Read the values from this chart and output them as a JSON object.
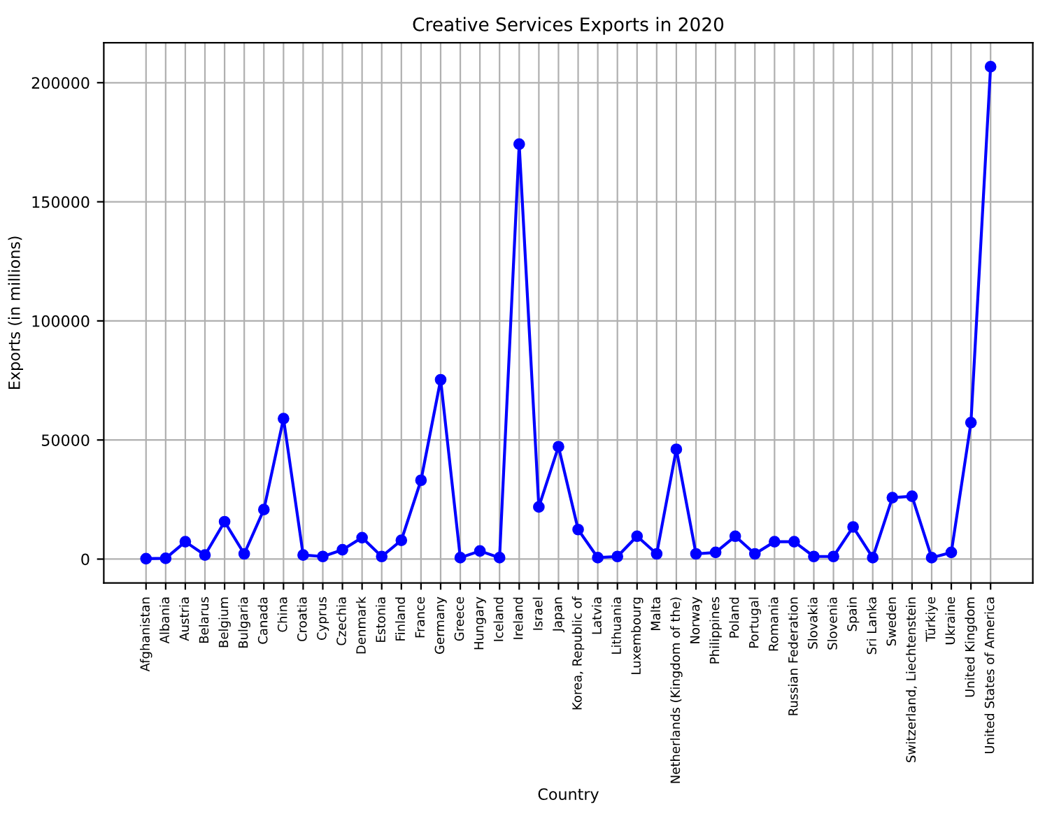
{
  "chart_data": {
    "type": "line",
    "title": "Creative Services Exports in 2020",
    "xlabel": "Country",
    "ylabel": "Exports (in millions)",
    "categories": [
      "Afghanistan",
      "Albania",
      "Austria",
      "Belarus",
      "Belgium",
      "Bulgaria",
      "Canada",
      "China",
      "Croatia",
      "Cyprus",
      "Czechia",
      "Denmark",
      "Estonia",
      "Finland",
      "France",
      "Germany",
      "Greece",
      "Hungary",
      "Iceland",
      "Ireland",
      "Israel",
      "Japan",
      "Korea, Republic of",
      "Latvia",
      "Lithuania",
      "Luxembourg",
      "Malta",
      "Netherlands (Kingdom of the)",
      "Norway",
      "Philippines",
      "Poland",
      "Portugal",
      "Romania",
      "Russian Federation",
      "Slovakia",
      "Slovenia",
      "Spain",
      "Sri Lanka",
      "Sweden",
      "Switzerland, Liechtenstein",
      "Türkiye",
      "Ukraine",
      "United Kingdom",
      "United States of America"
    ],
    "series": [
      {
        "color": "#0000ff",
        "values": [
          200,
          300,
          7300,
          1700,
          15700,
          2200,
          20800,
          59000,
          1700,
          1100,
          3900,
          9000,
          1100,
          7900,
          33100,
          75300,
          600,
          3400,
          600,
          174200,
          21900,
          47200,
          12400,
          600,
          1100,
          9600,
          2200,
          46100,
          2200,
          2800,
          9600,
          2200,
          7300,
          7300,
          1100,
          1100,
          13500,
          600,
          25800,
          26400,
          600,
          2800,
          57300,
          206700
        ]
      }
    ],
    "ylim": [
      -10000,
      216800
    ],
    "yticks": [
      0,
      50000,
      100000,
      150000,
      200000
    ],
    "grid": true,
    "marker": "circle",
    "line_style": "solid"
  }
}
